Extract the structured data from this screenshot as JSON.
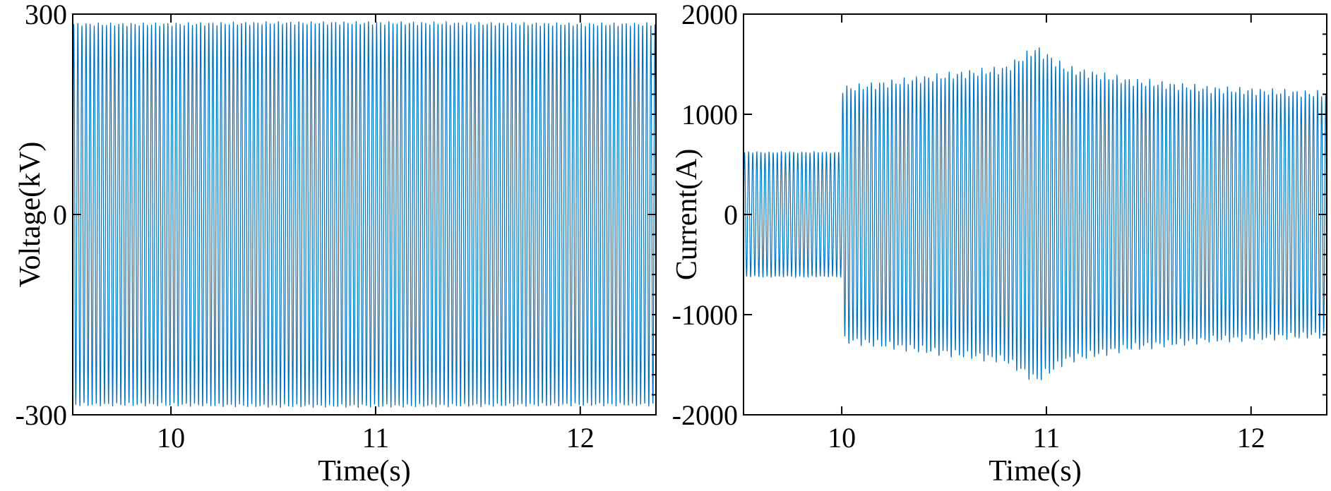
{
  "chart_data": [
    {
      "type": "line",
      "xlabel": "Time(s)",
      "ylabel": "Voltage(kV)",
      "xlim": [
        9.52,
        12.37
      ],
      "ylim": [
        -300,
        300
      ],
      "xticks": [
        10,
        11,
        12
      ],
      "xtick_labels": [
        "10",
        "11",
        "12"
      ],
      "yticks": [
        -300,
        0,
        300
      ],
      "ytick_labels": [
        "-300",
        "0",
        "300"
      ],
      "grid": false,
      "color": "#0072BD",
      "series": [
        {
          "frequency_hz": 50,
          "envelope": [
            {
              "t": 9.52,
              "amplitude": 285
            },
            {
              "t": 10.0,
              "amplitude": 285
            },
            {
              "t": 10.5,
              "amplitude": 287
            },
            {
              "t": 11.0,
              "amplitude": 287
            },
            {
              "t": 11.5,
              "amplitude": 286
            },
            {
              "t": 12.0,
              "amplitude": 285
            },
            {
              "t": 12.37,
              "amplitude": 285
            }
          ]
        }
      ]
    },
    {
      "type": "line",
      "xlabel": "Time(s)",
      "ylabel": "Current(A)",
      "xlim": [
        9.52,
        12.37
      ],
      "ylim": [
        -2000,
        2000
      ],
      "xticks": [
        10,
        11,
        12
      ],
      "xtick_labels": [
        "10",
        "11",
        "12"
      ],
      "yticks": [
        -2000,
        -1000,
        0,
        1000,
        2000
      ],
      "ytick_labels": [
        "-2000",
        "-1000",
        "0",
        "1000",
        "2000"
      ],
      "grid": false,
      "color": "#0072BD",
      "series": [
        {
          "frequency_hz": 50,
          "envelope": [
            {
              "t": 9.52,
              "amplitude": 620
            },
            {
              "t": 9.999,
              "amplitude": 620
            },
            {
              "t": 10.0,
              "amplitude": 1250
            },
            {
              "t": 10.2,
              "amplitude": 1300
            },
            {
              "t": 10.5,
              "amplitude": 1380
            },
            {
              "t": 10.8,
              "amplitude": 1450
            },
            {
              "t": 10.95,
              "amplitude": 1650
            },
            {
              "t": 11.1,
              "amplitude": 1450
            },
            {
              "t": 11.4,
              "amplitude": 1330
            },
            {
              "t": 11.8,
              "amplitude": 1250
            },
            {
              "t": 12.37,
              "amplitude": 1200
            }
          ]
        }
      ]
    }
  ]
}
